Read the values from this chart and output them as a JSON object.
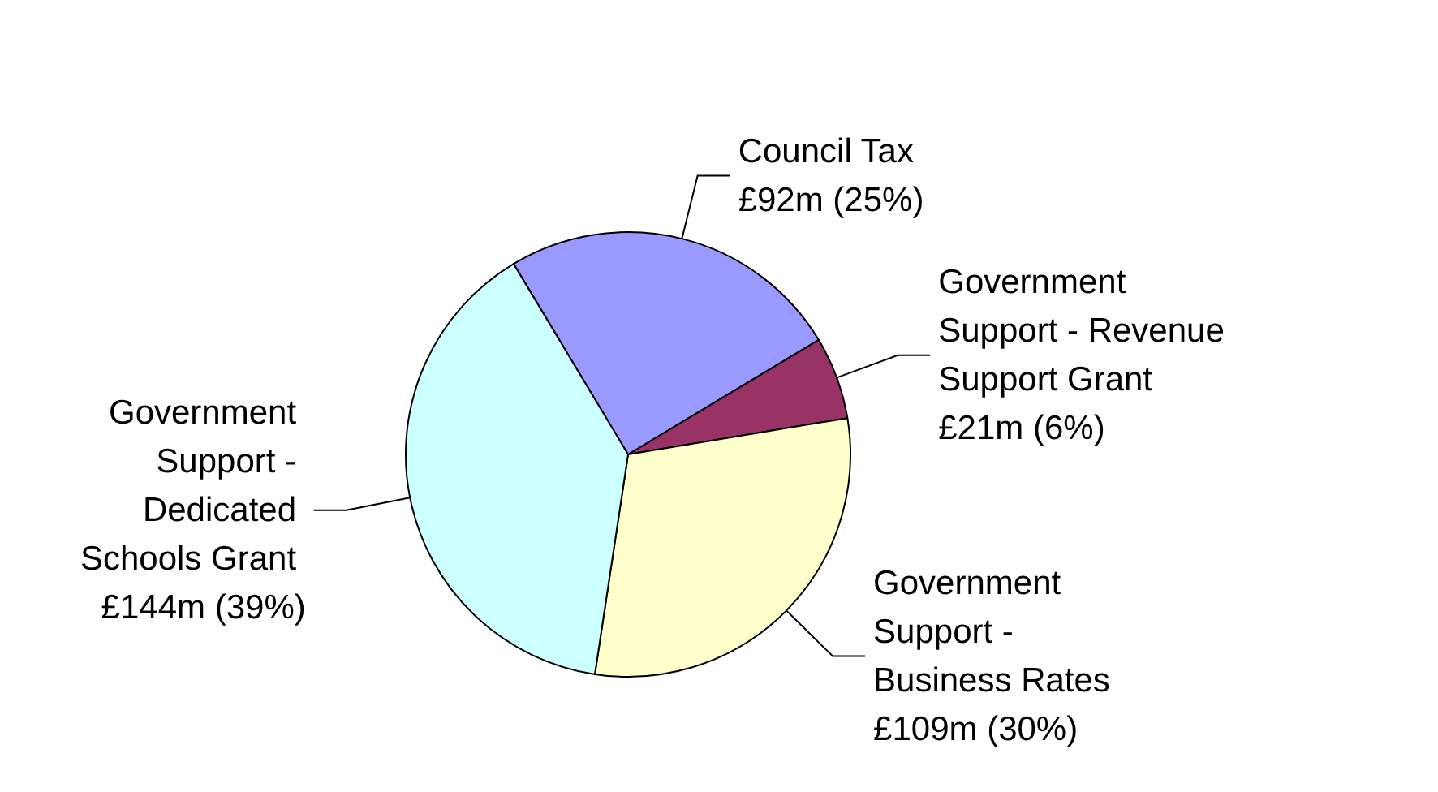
{
  "chart_data": {
    "type": "pie",
    "categories": [
      "Council Tax",
      "Government Support - Revenue Support Grant",
      "Government Support - Business Rates",
      "Government Support - Dedicated Schools Grant"
    ],
    "values": [
      25,
      6,
      30,
      39
    ],
    "colors": [
      "#9999ff",
      "#993366",
      "#ffffcc",
      "#ccffff"
    ],
    "value_labels": [
      "£92m (25%)",
      "£21m (6%)",
      "£109m (30%)",
      "£144m (39%)"
    ],
    "legend": false
  }
}
